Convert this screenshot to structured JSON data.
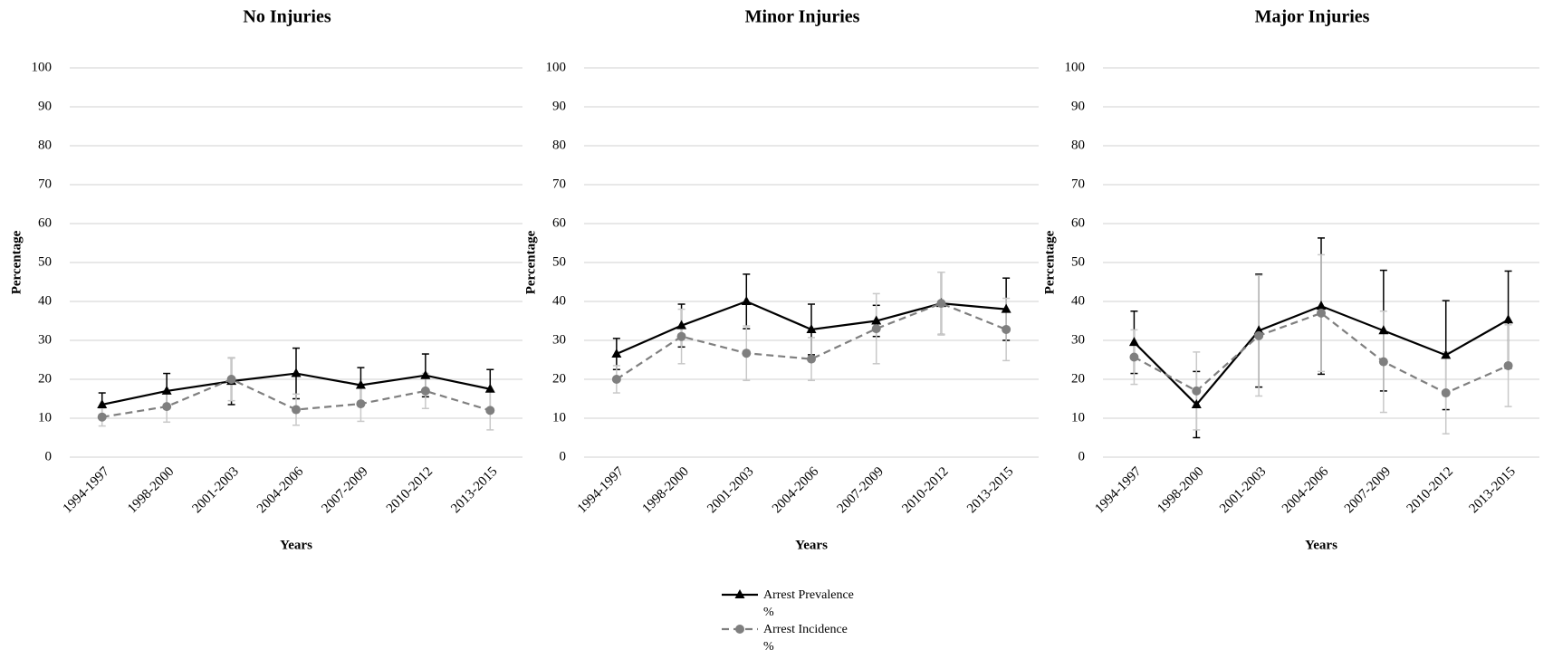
{
  "chart_data": [
    {
      "type": "line",
      "title": "No Injuries",
      "xlabel": "Years",
      "ylabel": "Percentage",
      "categories": [
        "1994-1997",
        "1998-2000",
        "2001-2003",
        "2004-2006",
        "2007-2009",
        "2010-2012",
        "2013-2015"
      ],
      "series": [
        {
          "color": "#000000",
          "error_color": "#000000",
          "marker": "triangle",
          "dash": false,
          "values": [
            13.5,
            17,
            19.5,
            21.5,
            18.5,
            21,
            17.5
          ],
          "errors": [
            3,
            4.5,
            6,
            6.5,
            4.5,
            5.5,
            5
          ]
        },
        {
          "color": "#7f7f7f",
          "error_color": "#c8c8c8",
          "marker": "circle",
          "dash": true,
          "values": [
            10.3,
            13,
            20,
            12.2,
            13.7,
            17,
            12
          ],
          "errors": [
            2.3,
            4,
            5.5,
            4,
            4.5,
            4.5,
            5
          ]
        }
      ],
      "ylim": [
        0,
        100
      ],
      "yticks": [
        0,
        10,
        20,
        30,
        40,
        50,
        60,
        70,
        80,
        90,
        100
      ],
      "grid": true
    },
    {
      "type": "line",
      "title": "Minor Injuries",
      "xlabel": "Years",
      "ylabel": "Percentage",
      "categories": [
        "1994-1997",
        "1998-2000",
        "2001-2003",
        "2004-2006",
        "2007-2009",
        "2010-2012",
        "2013-2015"
      ],
      "series": [
        {
          "color": "#000000",
          "error_color": "#000000",
          "marker": "triangle",
          "dash": false,
          "values": [
            26.5,
            33.8,
            40,
            32.8,
            35,
            39.5,
            38
          ],
          "errors": [
            4,
            5.5,
            7,
            6.5,
            4,
            8,
            8
          ]
        },
        {
          "color": "#7f7f7f",
          "error_color": "#c8c8c8",
          "marker": "circle",
          "dash": true,
          "values": [
            20,
            31,
            26.7,
            25.2,
            33,
            39.5,
            32.8
          ],
          "errors": [
            3.5,
            7,
            7,
            5.5,
            9,
            8,
            8
          ]
        }
      ],
      "ylim": [
        0,
        100
      ],
      "yticks": [
        0,
        10,
        20,
        30,
        40,
        50,
        60,
        70,
        80,
        90,
        100
      ],
      "grid": true
    },
    {
      "type": "line",
      "title": "Major Injuries",
      "xlabel": "Years",
      "ylabel": "Percentage",
      "categories": [
        "1994-1997",
        "1998-2000",
        "2001-2003",
        "2004-2006",
        "2007-2009",
        "2010-2012",
        "2013-2015"
      ],
      "series": [
        {
          "color": "#000000",
          "error_color": "#000000",
          "marker": "triangle",
          "dash": false,
          "values": [
            29.5,
            13.5,
            32.5,
            38.8,
            32.5,
            26.2,
            35.3
          ],
          "errors": [
            8,
            8.5,
            14.5,
            17.5,
            15.5,
            14,
            12.5
          ]
        },
        {
          "color": "#7f7f7f",
          "error_color": "#c8c8c8",
          "marker": "circle",
          "dash": true,
          "values": [
            25.7,
            17,
            31.2,
            37,
            24.5,
            16.5,
            23.5
          ],
          "errors": [
            7,
            10,
            15.5,
            15,
            13,
            10.5,
            10.5
          ]
        }
      ],
      "ylim": [
        0,
        100
      ],
      "yticks": [
        0,
        10,
        20,
        30,
        40,
        50,
        60,
        70,
        80,
        90,
        100
      ],
      "grid": true
    }
  ],
  "legend": {
    "entries": [
      {
        "name": "Arrest Prevalence %",
        "color": "#000000",
        "marker": "triangle",
        "dash": false
      },
      {
        "name": "Arrest Incidence %",
        "color": "#7f7f7f",
        "marker": "circle",
        "dash": true
      }
    ]
  }
}
